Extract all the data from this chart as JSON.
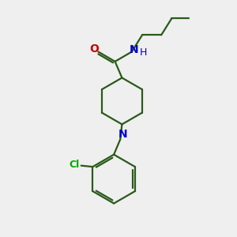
{
  "background_color": "#efefef",
  "bond_color": "#2a5a1a",
  "nitrogen_color": "#0000cc",
  "oxygen_color": "#cc0000",
  "chlorine_color": "#00aa00",
  "line_width": 1.6,
  "figsize": [
    3.0,
    3.0
  ],
  "dpi": 100,
  "xlim": [
    0,
    10
  ],
  "ylim": [
    0,
    10
  ]
}
